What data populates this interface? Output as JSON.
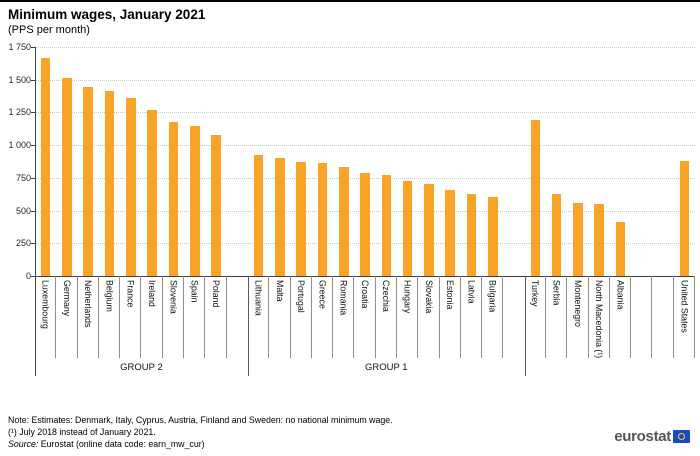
{
  "page": {
    "title": "Minimum wages, January 2021",
    "subtitle": "(PPS per month)"
  },
  "chart_data": {
    "type": "bar",
    "title": "Minimum wages, January 2021",
    "subtitle": "(PPS per month)",
    "ylabel": "PPS per month",
    "xlabel": "",
    "ylim": [
      0,
      1750
    ],
    "grid": "dotted horizontal",
    "bar_color": "#F8A428",
    "yticks": [
      {
        "value": 0,
        "label": "0"
      },
      {
        "value": 250,
        "label": "250"
      },
      {
        "value": 500,
        "label": "500"
      },
      {
        "value": 750,
        "label": "750"
      },
      {
        "value": 1000,
        "label": "1 000"
      },
      {
        "value": 1250,
        "label": "1 250"
      },
      {
        "value": 1500,
        "label": "1 500"
      },
      {
        "value": 1750,
        "label": "1 750"
      }
    ],
    "groups": [
      {
        "label": "GROUP 2",
        "items": [
          {
            "name": "Luxembourg",
            "value": 1668
          },
          {
            "name": "Germany",
            "value": 1512
          },
          {
            "name": "Netherlands",
            "value": 1445
          },
          {
            "name": "Belgium",
            "value": 1415
          },
          {
            "name": "France",
            "value": 1362
          },
          {
            "name": "Ireland",
            "value": 1269
          },
          {
            "name": "Slovenia",
            "value": 1177
          },
          {
            "name": "Spain",
            "value": 1145
          },
          {
            "name": "Poland",
            "value": 1077
          },
          {
            "name": "",
            "value": null,
            "spacer": true
          }
        ]
      },
      {
        "label": "GROUP 1",
        "items": [
          {
            "name": "Lithuania",
            "value": 925
          },
          {
            "name": "Malta",
            "value": 900
          },
          {
            "name": "Portugal",
            "value": 875
          },
          {
            "name": "Greece",
            "value": 865
          },
          {
            "name": "Romania",
            "value": 835
          },
          {
            "name": "Croatia",
            "value": 790
          },
          {
            "name": "Czechia",
            "value": 770
          },
          {
            "name": "Hungary",
            "value": 725
          },
          {
            "name": "Slovakia",
            "value": 705
          },
          {
            "name": "Estonia",
            "value": 660
          },
          {
            "name": "Latvia",
            "value": 625
          },
          {
            "name": "Bulgaria",
            "value": 605
          },
          {
            "name": "",
            "value": null,
            "spacer": true
          }
        ]
      },
      {
        "label": "",
        "items": [
          {
            "name": "Turkey",
            "value": 1190
          },
          {
            "name": "Serbia",
            "value": 630
          },
          {
            "name": "Montenegro",
            "value": 560
          },
          {
            "name": "North Macedonia (¹)",
            "value": 550
          },
          {
            "name": "Albania",
            "value": 410
          },
          {
            "name": "",
            "value": null,
            "spacer": true
          },
          {
            "name": "",
            "value": null,
            "spacer": true
          },
          {
            "name": "United States",
            "value": 880
          }
        ]
      }
    ]
  },
  "footer": {
    "note": "Note: Estimates: Denmark, Italy, Cyprus, Austria, Finland and Sweden: no national minimum wage.",
    "footnote1": "(¹) July 2018 instead of January 2021.",
    "source_label": "Source:",
    "source_rest": " Eurostat (online data code: earn_mw_cur)"
  },
  "logo": {
    "text": "eurostat",
    "flag_color": "#1849C6",
    "ring_color": "#FFD617"
  }
}
